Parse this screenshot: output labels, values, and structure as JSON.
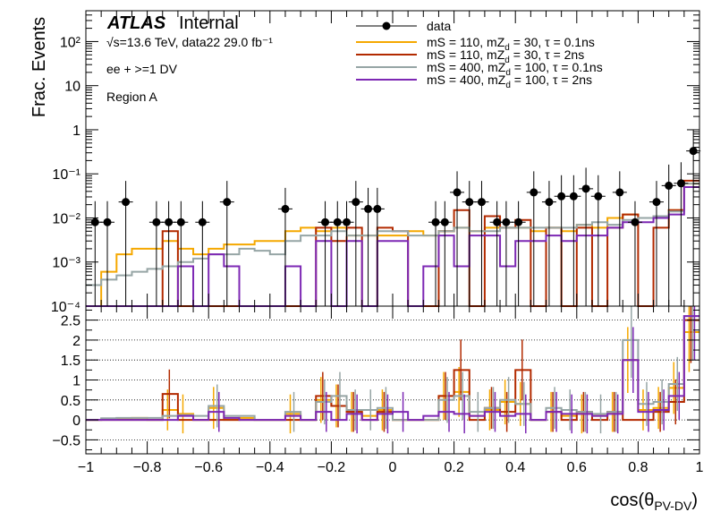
{
  "colors": {
    "data": "#000000",
    "mS110_tau01": "#f5a800",
    "mS110_tau2": "#b22a00",
    "mS400_tau01": "#96a5a5",
    "mS400_tau2": "#7d28b4"
  },
  "annotations": {
    "atlas": "ATLAS",
    "internal": "Internal",
    "lumi": "√s=13.6 TeV, data22 29.0 fb⁻¹",
    "selection": "ee + >=1 DV",
    "region": "Region A"
  },
  "chart_data": [
    {
      "type": "histogram",
      "panel": "upper",
      "ylabel": "Frac. Events",
      "yscale": "log",
      "ylim": [
        0.0001,
        500
      ],
      "xlim": [
        -1,
        1
      ],
      "ytick_labels": [
        "10⁻⁴",
        "10⁻³",
        "10⁻²",
        "10⁻¹",
        "1",
        "10",
        "10²"
      ],
      "legend": {
        "position": "top-right"
      },
      "series": [
        {
          "name": "data",
          "kind": "points",
          "color": "#000000",
          "points": [
            [
              -0.97,
              0.008
            ],
            [
              -0.93,
              0.008
            ],
            [
              -0.87,
              0.023
            ],
            [
              -0.77,
              0.008
            ],
            [
              -0.73,
              0.008
            ],
            [
              -0.69,
              0.008
            ],
            [
              -0.62,
              0.008
            ],
            [
              -0.54,
              0.023
            ],
            [
              -0.35,
              0.016
            ],
            [
              -0.22,
              0.008
            ],
            [
              -0.18,
              0.008
            ],
            [
              -0.15,
              0.008
            ],
            [
              -0.12,
              0.023
            ],
            [
              -0.08,
              0.016
            ],
            [
              -0.05,
              0.016
            ],
            [
              0.14,
              0.008
            ],
            [
              0.17,
              0.008
            ],
            [
              0.21,
              0.038
            ],
            [
              0.25,
              0.023
            ],
            [
              0.29,
              0.023
            ],
            [
              0.34,
              0.008
            ],
            [
              0.37,
              0.008
            ],
            [
              0.41,
              0.008
            ],
            [
              0.46,
              0.038
            ],
            [
              0.51,
              0.023
            ],
            [
              0.55,
              0.031
            ],
            [
              0.59,
              0.031
            ],
            [
              0.63,
              0.046
            ],
            [
              0.67,
              0.031
            ],
            [
              0.74,
              0.038
            ],
            [
              0.79,
              0.008
            ],
            [
              0.86,
              0.023
            ],
            [
              0.9,
              0.054
            ],
            [
              0.94,
              0.061
            ],
            [
              0.98,
              0.33
            ]
          ]
        },
        {
          "name": "mS = 110, mZ_d = 30, τ = 0.1ns",
          "kind": "step",
          "color": "#f5a800",
          "edges": [
            -1,
            -0.95,
            -0.9,
            -0.85,
            -0.8,
            -0.75,
            -0.7,
            -0.65,
            -0.6,
            -0.55,
            -0.5,
            -0.45,
            -0.4,
            -0.35,
            -0.3,
            -0.25,
            -0.2,
            -0.15,
            -0.1,
            -0.05,
            0,
            0.05,
            0.1,
            0.15,
            0.2,
            0.25,
            0.3,
            0.35,
            0.4,
            0.45,
            0.5,
            0.55,
            0.6,
            0.65,
            0.7,
            0.75,
            0.8,
            0.85,
            0.9,
            0.95,
            1
          ],
          "values": [
            0.0001,
            0.0006,
            0.0015,
            0.002,
            0.002,
            0.003,
            0.002,
            0.0015,
            0.002,
            0.0025,
            0.0025,
            0.003,
            0.003,
            0.005,
            0.006,
            0.005,
            0.006,
            0.004,
            0.004,
            0.004,
            0.004,
            0.005,
            0.004,
            0.005,
            0.006,
            0.005,
            0.006,
            0.006,
            0.006,
            0.005,
            0.006,
            0.005,
            0.007,
            0.006,
            0.01,
            0.012,
            0.01,
            0.011,
            0.015,
            0.06
          ]
        },
        {
          "name": "mS = 110, mZ_d = 30, τ = 2ns",
          "kind": "step",
          "color": "#b22a00",
          "edges": [
            -1,
            -0.95,
            -0.9,
            -0.85,
            -0.8,
            -0.75,
            -0.7,
            -0.65,
            -0.6,
            -0.55,
            -0.5,
            -0.45,
            -0.4,
            -0.35,
            -0.3,
            -0.25,
            -0.2,
            -0.15,
            -0.1,
            -0.05,
            0,
            0.05,
            0.1,
            0.15,
            0.2,
            0.25,
            0.3,
            0.35,
            0.4,
            0.45,
            0.5,
            0.55,
            0.6,
            0.65,
            0.7,
            0.75,
            0.8,
            0.85,
            0.9,
            0.95,
            1
          ],
          "values": [
            0.0001,
            0.0001,
            0.0001,
            0.0001,
            0.0001,
            0.005,
            0.0001,
            0.0001,
            0.0001,
            0.0001,
            0.0001,
            0.0001,
            0.0001,
            0.0001,
            0.0001,
            0.006,
            0.003,
            0.006,
            0.0001,
            0.006,
            0.005,
            0.0001,
            0.0001,
            0.005,
            0.015,
            0.0001,
            0.011,
            0.006,
            0.009,
            0.0001,
            0.006,
            0.0001,
            0.006,
            0.0001,
            0.006,
            0.012,
            0.0001,
            0.006,
            0.015,
            0.07
          ]
        },
        {
          "name": "mS = 400, mZ_d = 100, τ = 0.1ns",
          "kind": "step",
          "color": "#96a5a5",
          "edges": [
            -1,
            -0.95,
            -0.9,
            -0.85,
            -0.8,
            -0.75,
            -0.7,
            -0.65,
            -0.6,
            -0.55,
            -0.5,
            -0.45,
            -0.4,
            -0.35,
            -0.3,
            -0.25,
            -0.2,
            -0.15,
            -0.1,
            -0.05,
            0,
            0.05,
            0.1,
            0.15,
            0.2,
            0.25,
            0.3,
            0.35,
            0.4,
            0.45,
            0.5,
            0.55,
            0.6,
            0.65,
            0.7,
            0.75,
            0.8,
            0.85,
            0.9,
            0.95,
            1
          ],
          "values": [
            0.0003,
            0.0004,
            0.0005,
            0.0006,
            0.0007,
            0.0008,
            0.001,
            0.0012,
            0.0015,
            0.0015,
            0.002,
            0.0018,
            0.0015,
            0.003,
            0.004,
            0.004,
            0.005,
            0.004,
            0.004,
            0.005,
            0.005,
            0.004,
            0.004,
            0.005,
            0.006,
            0.005,
            0.005,
            0.006,
            0.006,
            0.006,
            0.006,
            0.006,
            0.007,
            0.008,
            0.007,
            0.009,
            0.01,
            0.011,
            0.014,
            0.06
          ]
        },
        {
          "name": "mS = 400, mZ_d = 100, τ = 2ns",
          "kind": "step",
          "color": "#7d28b4",
          "edges": [
            -1,
            -0.95,
            -0.9,
            -0.85,
            -0.8,
            -0.75,
            -0.7,
            -0.65,
            -0.6,
            -0.55,
            -0.5,
            -0.45,
            -0.4,
            -0.35,
            -0.3,
            -0.25,
            -0.2,
            -0.15,
            -0.1,
            -0.05,
            0,
            0.05,
            0.1,
            0.15,
            0.2,
            0.25,
            0.3,
            0.35,
            0.4,
            0.45,
            0.5,
            0.55,
            0.6,
            0.65,
            0.7,
            0.75,
            0.8,
            0.85,
            0.9,
            0.95,
            1
          ],
          "values": [
            0.0001,
            0.0001,
            0.0001,
            0.0001,
            0.0001,
            0.0001,
            0.0008,
            0.0001,
            0.0015,
            0.0008,
            0.0001,
            0.0001,
            0.0001,
            0.0008,
            0.0001,
            0.003,
            0.0001,
            0.003,
            0.0001,
            0.003,
            0.003,
            0.0001,
            0.0008,
            0.004,
            0.0008,
            0.004,
            0.004,
            0.0008,
            0.003,
            0.003,
            0.004,
            0.003,
            0.004,
            0.004,
            0.006,
            0.008,
            0.008,
            0.01,
            0.012,
            0.05
          ]
        }
      ]
    },
    {
      "type": "histogram",
      "panel": "lower",
      "yscale": "linear",
      "ylim": [
        -0.85,
        2.85
      ],
      "xlim": [
        -1,
        1
      ],
      "xlabel": "cos(θPV-DV)",
      "xlabel_parts": {
        "base": "cos(θ",
        "sub": "PV-DV",
        "tail": ")"
      },
      "grid": {
        "y": [
          -0.5,
          0,
          0.5,
          1,
          1.5,
          2,
          2.5
        ]
      },
      "xtick_labels": [
        "−1",
        "−0.8",
        "−0.6",
        "−0.4",
        "−0.2",
        "0",
        "0.2",
        "0.4",
        "0.6",
        "0.8",
        "1"
      ],
      "ytick_labels": [
        "−0.5",
        "0",
        "0.5",
        "1",
        "1.5",
        "2",
        "2.5"
      ],
      "series": [
        {
          "name": "mS = 110, mZ_d = 30, τ = 0.1ns",
          "kind": "step",
          "color": "#f5a800",
          "values": [
            0,
            0.02,
            0.04,
            0.05,
            0,
            0.25,
            0.15,
            0,
            0.3,
            0,
            0.05,
            0,
            0,
            0.15,
            0,
            0.5,
            0.35,
            0.2,
            0.1,
            0.25,
            0,
            0,
            0,
            0.6,
            0.7,
            0.1,
            0.25,
            0.45,
            0.4,
            0,
            0.2,
            0.1,
            0.15,
            0.1,
            0.2,
            1.5,
            0.25,
            0.3,
            0.8,
            2.2
          ]
        },
        {
          "name": "mS = 110, mZ_d = 30, τ = 2ns",
          "kind": "step",
          "color": "#b22a00",
          "values": [
            0,
            0,
            0,
            0,
            0,
            0.65,
            0,
            0,
            0,
            0,
            0,
            0,
            0,
            0,
            0,
            0.6,
            0.35,
            0.2,
            0,
            0.2,
            0,
            0,
            0,
            0.6,
            1.25,
            0,
            0.3,
            0.2,
            1.25,
            0,
            0.2,
            0,
            0.2,
            0,
            0.2,
            0,
            0,
            0.2,
            0.45,
            2.5
          ]
        },
        {
          "name": "mS = 400, mZ_d = 100, τ = 0.1ns",
          "kind": "step",
          "color": "#96a5a5",
          "values": [
            0,
            0.04,
            0.05,
            0.05,
            0.05,
            0.1,
            0.12,
            0.1,
            0.35,
            0.1,
            0.1,
            0,
            0,
            0.2,
            0,
            0.45,
            0.6,
            0.25,
            0.25,
            0.3,
            0,
            0,
            0,
            0.5,
            0.6,
            0.2,
            0.3,
            0.5,
            0.4,
            0,
            0.3,
            0.25,
            0.2,
            0.15,
            0.2,
            2.0,
            0.4,
            0.45,
            0.9,
            2.6
          ]
        },
        {
          "name": "mS = 400, mZ_d = 100, τ = 2ns",
          "kind": "step",
          "color": "#7d28b4",
          "values": [
            0,
            0,
            0,
            0,
            0,
            0,
            0.1,
            0,
            0.2,
            0.05,
            0,
            0,
            0,
            0.1,
            0,
            0.2,
            0,
            0.15,
            0,
            0.15,
            0.2,
            0,
            0.1,
            0.2,
            0.15,
            0.1,
            0.2,
            0.1,
            0.15,
            0,
            0.2,
            0.15,
            0.15,
            0.1,
            0.15,
            1.5,
            0.2,
            0.25,
            0.6,
            2.6
          ]
        }
      ]
    }
  ]
}
